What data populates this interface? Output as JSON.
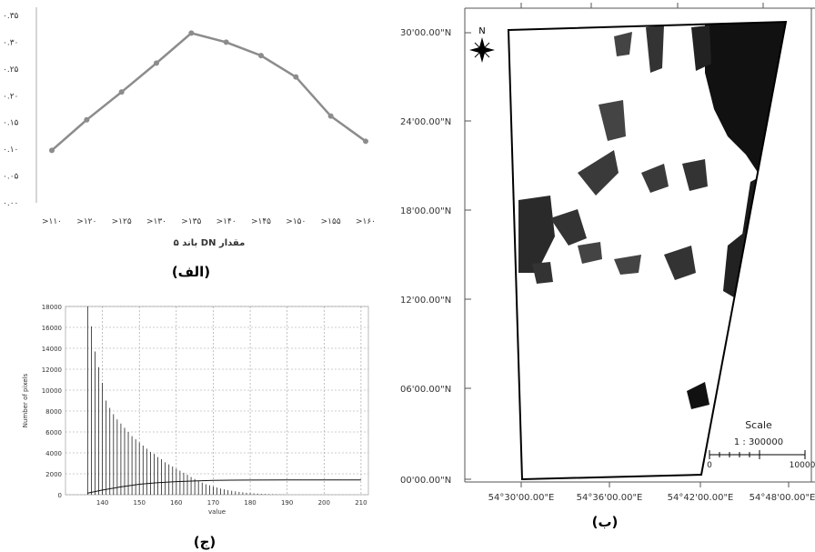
{
  "captions": {
    "alef": "(الف)",
    "be": "(ب)",
    "jim": "(ج)"
  },
  "chart_data": [
    {
      "type": "line",
      "panel": "alef",
      "categories": [
        ">110",
        ">120",
        ">125",
        ">130",
        ">135",
        ">140",
        ">145",
        ">150",
        ">155",
        ">160"
      ],
      "category_labels": [
        ">۱۱۰",
        ">۱۲۰",
        ">۱۲۵",
        ">۱۳۰",
        ">۱۳۵",
        ">۱۴۰",
        ">۱۴۵",
        ">۱۵۰",
        ">۱۵۵",
        ">۱۶۰"
      ],
      "values": [
        0.098,
        0.155,
        0.207,
        0.261,
        0.317,
        0.3,
        0.275,
        0.235,
        0.162,
        0.115
      ],
      "xlabel": "مقدار DN باند ۵",
      "ylabel": "",
      "ylim": [
        0,
        0.35
      ],
      "yticks": [
        0,
        0.05,
        0.1,
        0.15,
        0.2,
        0.25,
        0.3,
        0.35
      ],
      "ytick_labels": [
        "۰.۰۰",
        "۰.۰۵",
        "۰.۱۰",
        "۰.۱۵",
        "۰.۲۰",
        "۰.۲۵",
        "۰.۳۰",
        "۰.۳۵"
      ],
      "grid": false,
      "color": "#8c8c8c"
    },
    {
      "type": "bar",
      "panel": "jim",
      "subtype": "histogram",
      "x": [
        136,
        137,
        138,
        139,
        140,
        141,
        142,
        143,
        144,
        145,
        146,
        147,
        148,
        149,
        150,
        151,
        152,
        153,
        154,
        155,
        156,
        157,
        158,
        159,
        160,
        161,
        162,
        163,
        164,
        165,
        166,
        167,
        168,
        169,
        170,
        171,
        172,
        173,
        174,
        175,
        176,
        177,
        178,
        179,
        180,
        181,
        182,
        183,
        184,
        185,
        186,
        187,
        188,
        189,
        190
      ],
      "values": [
        18000,
        16100,
        13700,
        12200,
        10700,
        9000,
        8300,
        7700,
        7200,
        6800,
        6400,
        6000,
        5600,
        5300,
        5000,
        4700,
        4400,
        4100,
        3900,
        3600,
        3400,
        3100,
        2900,
        2700,
        2500,
        2300,
        2100,
        1900,
        1700,
        1500,
        1300,
        1150,
        1000,
        900,
        780,
        680,
        590,
        510,
        440,
        380,
        320,
        270,
        230,
        190,
        160,
        130,
        110,
        90,
        70,
        55,
        45,
        35,
        25,
        18,
        12
      ],
      "cumulative_line": {
        "x": [
          136,
          140,
          145,
          150,
          155,
          160,
          165,
          170,
          175,
          180,
          190,
          200,
          210
        ],
        "values": [
          150,
          450,
          750,
          1000,
          1150,
          1250,
          1320,
          1370,
          1390,
          1400,
          1410,
          1410,
          1410
        ]
      },
      "xlabel": "value",
      "ylabel": "Number of pixels",
      "xlim": [
        130,
        212
      ],
      "ylim": [
        0,
        18000
      ],
      "xticks": [
        140,
        150,
        160,
        170,
        180,
        190,
        200,
        210
      ],
      "yticks": [
        0,
        2000,
        4000,
        6000,
        8000,
        10000,
        12000,
        14000,
        16000,
        18000
      ],
      "grid": true
    }
  ],
  "map": {
    "north_label": "N",
    "lat_labels": [
      "30'00.00\"N",
      "24'00.00\"N",
      "18'00.00\"N",
      "12'00.00\"N",
      "06'00.00\"N",
      "00'00.00\"N"
    ],
    "lon_labels": [
      "54°30'00.00\"E",
      "54°36'00.00\"E",
      "54°42'00.00\"E",
      "54°48'00.00\"E"
    ],
    "scale_title": "Scale",
    "scale_ratio": "1 : 300000",
    "scale_left": "0",
    "scale_right": "10000"
  }
}
